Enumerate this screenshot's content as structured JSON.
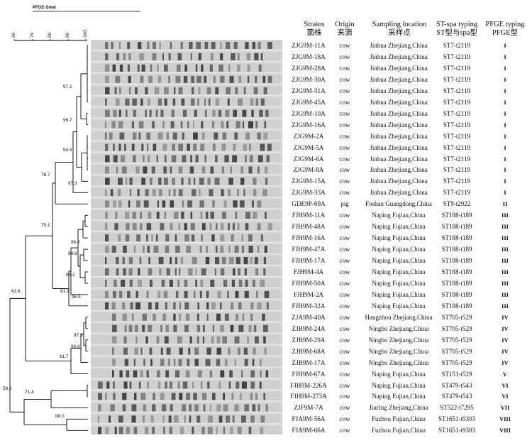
{
  "figure": {
    "title": "PFGE-SmaI",
    "scale_ticks": [
      "60",
      "70",
      "80",
      "90",
      "100"
    ],
    "headers": {
      "strain": [
        "Strains",
        "菌株"
      ],
      "origin": [
        "Origin",
        "来源"
      ],
      "location": [
        "Sampling location",
        "采样点"
      ],
      "st": [
        "ST-spa typing",
        "ST型与spa型"
      ],
      "pfge": [
        "PFGE typing",
        "PFGE型"
      ]
    },
    "nodes": [
      "97.1",
      "96.7",
      "94.5",
      "97.3",
      "78.7",
      "75.1",
      "96.8",
      "94.8",
      "93.2",
      "91.1",
      "96.5",
      "63.6",
      "97.8",
      "96.8",
      "81.7",
      "58.2",
      "71.4",
      "88.0"
    ],
    "rows": [
      {
        "strain": "ZJG9M-11A",
        "origin": "cow",
        "location": "Jinhua Zhejiang,China",
        "st": "ST7-t2119",
        "pfge": "I"
      },
      {
        "strain": "ZJG9M-18A",
        "origin": "cow",
        "location": "Jinhua Zhejiang,China",
        "st": "ST7-t2119",
        "pfge": "I"
      },
      {
        "strain": "ZJG9M-28A",
        "origin": "cow",
        "location": "Jinhua Zhejiang,China",
        "st": "ST7-t2119",
        "pfge": "I"
      },
      {
        "strain": "ZJG9M-30A",
        "origin": "cow",
        "location": "Jinhua Zhejiang,China",
        "st": "ST7-t2119",
        "pfge": "I"
      },
      {
        "strain": "ZJG9M-31A",
        "origin": "cow",
        "location": "Jinhua Zhejiang,China",
        "st": "ST7-t2119",
        "pfge": "I"
      },
      {
        "strain": "ZJG9M-45A",
        "origin": "cow",
        "location": "Jinhua Zhejiang,China",
        "st": "ST7-t2119",
        "pfge": "I"
      },
      {
        "strain": "ZJG9M-10A",
        "origin": "cow",
        "location": "Jinhua Zhejiang,China",
        "st": "ST7-t2119",
        "pfge": "I"
      },
      {
        "strain": "ZJG9M-16A",
        "origin": "cow",
        "location": "Jinhua Zhejiang,China",
        "st": "ST7-t2119",
        "pfge": "I"
      },
      {
        "strain": "ZJG9M-2A",
        "origin": "cow",
        "location": "Jinhua Zhejiang,China",
        "st": "ST7-t2119",
        "pfge": "I"
      },
      {
        "strain": "ZJG9M-5A",
        "origin": "cow",
        "location": "Jinhua Zhejiang,China",
        "st": "ST7-t2119",
        "pfge": "I"
      },
      {
        "strain": "ZJG9M-6A",
        "origin": "cow",
        "location": "Jinhua Zhejiang,China",
        "st": "ST7-t2119",
        "pfge": "I"
      },
      {
        "strain": "ZJG9M-8A",
        "origin": "cow",
        "location": "Jinhua Zhejiang,China",
        "st": "ST7-t2119",
        "pfge": "I"
      },
      {
        "strain": "ZJG9M-15A",
        "origin": "cow",
        "location": "Jinhua Zhejiang,China",
        "st": "ST7-t2119",
        "pfge": "I"
      },
      {
        "strain": "ZJG9M-33A",
        "origin": "cow",
        "location": "Jinhua Zhejiang,China",
        "st": "ST7-t2119",
        "pfge": "I"
      },
      {
        "strain": "GDE9P-69A",
        "origin": "pig",
        "location": "Foshan Guangdong,China",
        "st": "ST9-t2922",
        "pfge": "II"
      },
      {
        "strain": "FJH9M-11A",
        "origin": "cow",
        "location": "Naping Fujian,China",
        "st": "ST188-t189",
        "pfge": "III"
      },
      {
        "strain": "FJH9M-48A",
        "origin": "cow",
        "location": "Naping Fujian,China",
        "st": "ST188-t189",
        "pfge": "III"
      },
      {
        "strain": "FJH9M-16A",
        "origin": "cow",
        "location": "Naping Fujian,China",
        "st": "ST188-t189",
        "pfge": "III"
      },
      {
        "strain": "FJH9M-47A",
        "origin": "cow",
        "location": "Naping Fujian,China",
        "st": "ST188-t189",
        "pfge": "III"
      },
      {
        "strain": "FJH9M-17A",
        "origin": "cow",
        "location": "Naping Fujian,China",
        "st": "ST188-t189",
        "pfge": "III"
      },
      {
        "strain": "FJH9M-4A",
        "origin": "cow",
        "location": "Naping Fujian,China",
        "st": "ST188-t189",
        "pfge": "III"
      },
      {
        "strain": "FJH9M-50A",
        "origin": "cow",
        "location": "Naping Fujian,China",
        "st": "ST188-t189",
        "pfge": "III"
      },
      {
        "strain": "FJH9M-2A",
        "origin": "cow",
        "location": "Naping Fujian,China",
        "st": "ST188-t189",
        "pfge": "III"
      },
      {
        "strain": "FJH9M-32A",
        "origin": "cow",
        "location": "Naping Fujian,China",
        "st": "ST188-t189",
        "pfge": "III"
      },
      {
        "strain": "ZJA9M-40A",
        "origin": "cow",
        "location": "Hangzhou Zhejiang,China",
        "st": "ST705-t529",
        "pfge": "IV"
      },
      {
        "strain": "ZJB9M-24A",
        "origin": "cow",
        "location": "Ningbo Zhejiang,China",
        "st": "ST705-t529",
        "pfge": "IV"
      },
      {
        "strain": "ZJB9M-29A",
        "origin": "cow",
        "location": "Ningbo Zhejiang,China",
        "st": "ST705-t529",
        "pfge": "IV"
      },
      {
        "strain": "ZJB9M-68A",
        "origin": "cow",
        "location": "Ningbo Zhejiang,China",
        "st": "ST705-t529",
        "pfge": "IV"
      },
      {
        "strain": "ZJB9M-17A",
        "origin": "cow",
        "location": "Ningbo Zhejiang,China",
        "st": "ST705-t529",
        "pfge": "IV"
      },
      {
        "strain": "FJH9M-67A",
        "origin": "cow",
        "location": "Naping Fujian,China",
        "st": "ST151-t529",
        "pfge": "V"
      },
      {
        "strain": "FJH9M-226A",
        "origin": "cow",
        "location": "Naping Fujian,China",
        "st": "ST479-t543",
        "pfge": "VI"
      },
      {
        "strain": "FJH9M-273A",
        "origin": "cow",
        "location": "Naping Fujian,China",
        "st": "ST479-t543",
        "pfge": "VI"
      },
      {
        "strain": "ZJF9M-7A",
        "origin": "cow",
        "location": "Jiacing Zhejiang,China",
        "st": "ST522-t7295",
        "pfge": "VII"
      },
      {
        "strain": "FJA9M-56A",
        "origin": "cow",
        "location": "Fuzhou Fujian,China",
        "st": "ST1651-t9303",
        "pfge": "VIII"
      },
      {
        "strain": "FJA9M-66A",
        "origin": "cow",
        "location": "Fuzhou Fujian,China",
        "st": "ST1651-t9303",
        "pfge": "VIII"
      }
    ]
  }
}
